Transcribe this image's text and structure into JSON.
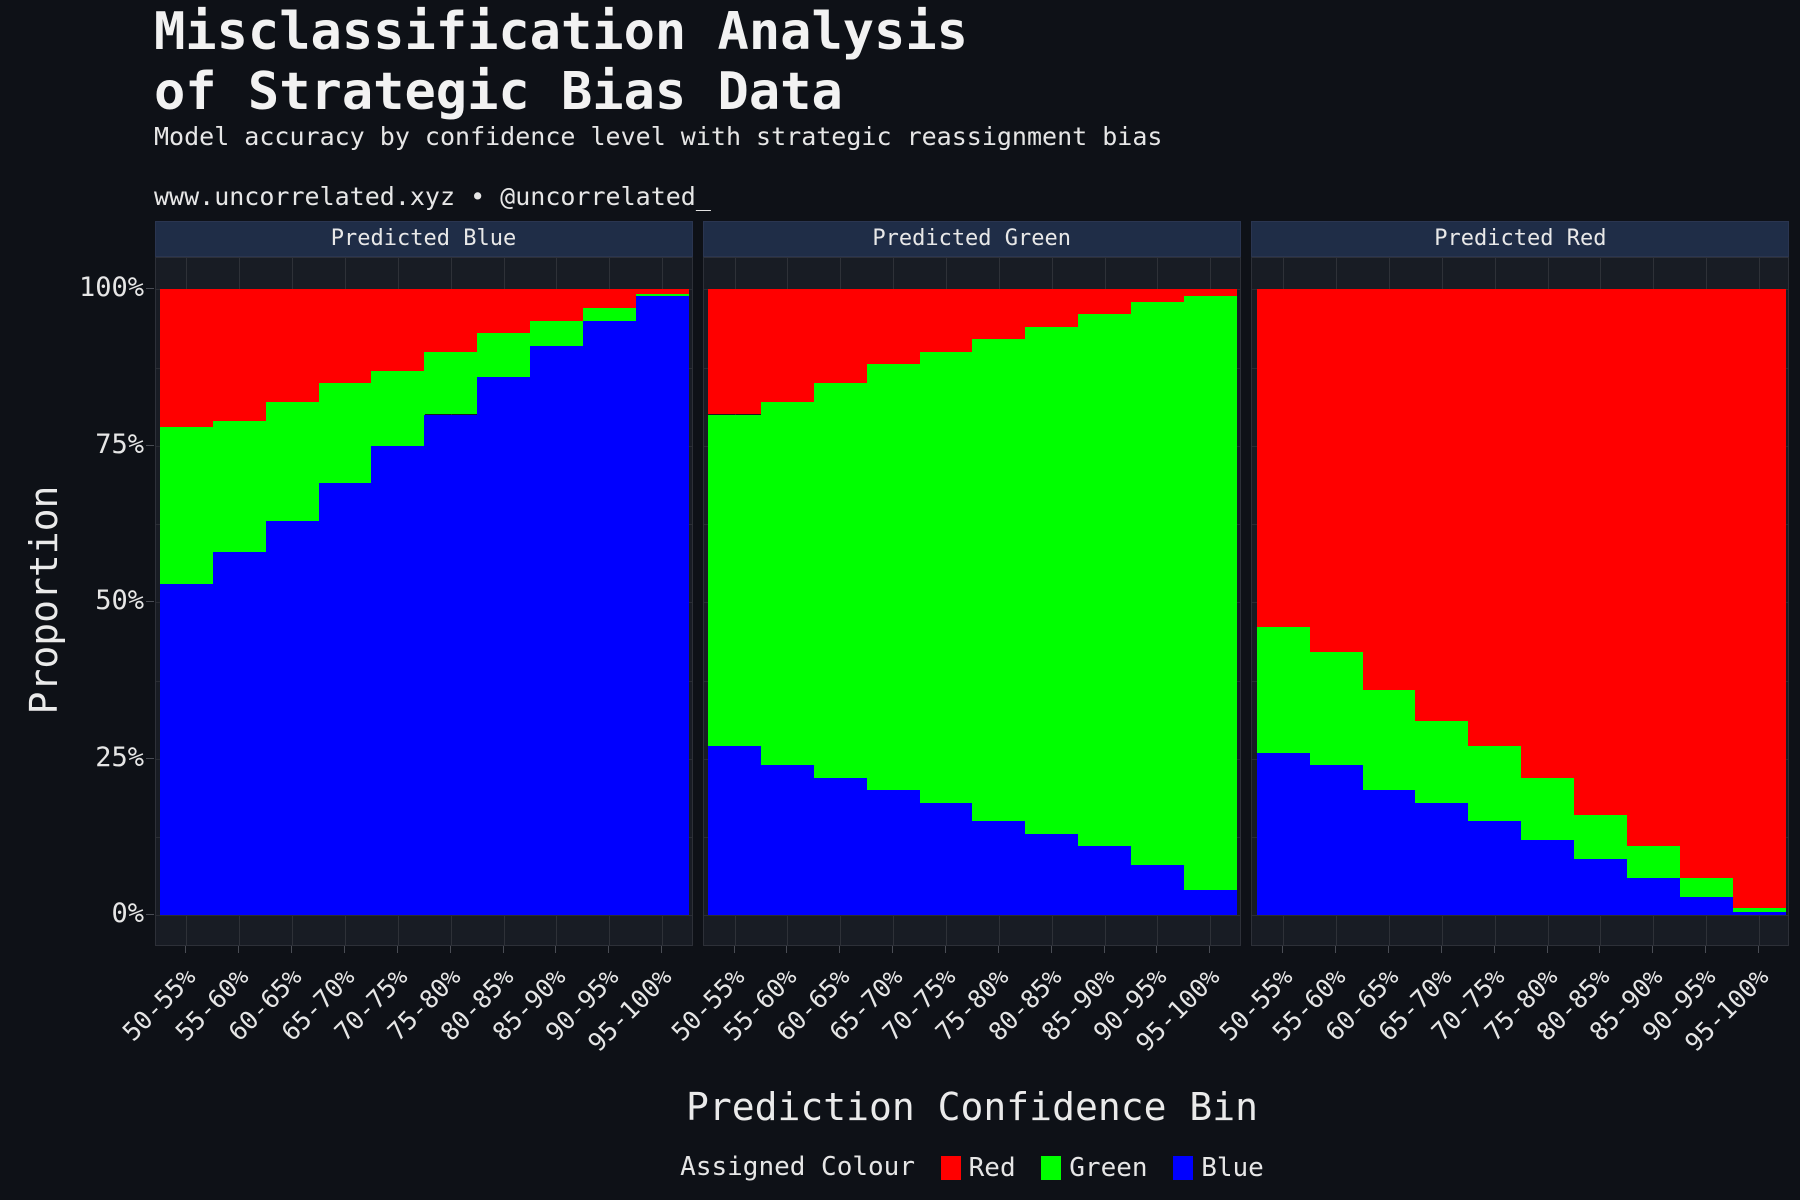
{
  "header": {
    "title_line1": "Misclassification Analysis",
    "title_line2": "of Strategic Bias Data",
    "subtitle": "Model accuracy by confidence level with strategic reassignment bias",
    "caption": "www.uncorrelated.xyz • @uncorrelated_"
  },
  "axes": {
    "ylabel": "Proportion",
    "xlabel": "Prediction Confidence Bin",
    "yticks": [
      "0%",
      "25%",
      "50%",
      "75%",
      "100%"
    ]
  },
  "legend": {
    "title": "Assigned Colour",
    "items": [
      {
        "label": "Red",
        "color": "#ff0000"
      },
      {
        "label": "Green",
        "color": "#00ff00"
      },
      {
        "label": "Blue",
        "color": "#0000ff"
      }
    ]
  },
  "colors": {
    "Red": "#ff0000",
    "Green": "#00ff00",
    "Blue": "#0000ff",
    "background": "#0e1117",
    "strip": "#1f2d47",
    "panel": "#181c24"
  },
  "chart_data": {
    "type": "bar",
    "stacked": true,
    "normalized": true,
    "title": "Misclassification Analysis of Strategic Bias Data",
    "subtitle": "Model accuracy by confidence level with strategic reassignment bias",
    "xlabel": "Prediction Confidence Bin",
    "ylabel": "Proportion",
    "ylim": [
      0,
      1
    ],
    "stack_order_bottom_to_top": [
      "Blue",
      "Green",
      "Red"
    ],
    "categories": [
      "50-55%",
      "55-60%",
      "60-65%",
      "65-70%",
      "70-75%",
      "75-80%",
      "80-85%",
      "85-90%",
      "90-95%",
      "95-100%"
    ],
    "legend_position": "bottom",
    "facets": [
      {
        "name": "Predicted Blue",
        "series": [
          {
            "name": "Blue",
            "values": [
              0.53,
              0.58,
              0.63,
              0.69,
              0.75,
              0.8,
              0.86,
              0.91,
              0.95,
              0.99
            ]
          },
          {
            "name": "Green",
            "values": [
              0.25,
              0.21,
              0.19,
              0.16,
              0.12,
              0.1,
              0.07,
              0.04,
              0.02,
              0.003
            ]
          },
          {
            "name": "Red",
            "values": [
              0.22,
              0.21,
              0.18,
              0.15,
              0.13,
              0.1,
              0.07,
              0.05,
              0.03,
              0.007
            ]
          }
        ]
      },
      {
        "name": "Predicted Green",
        "series": [
          {
            "name": "Blue",
            "values": [
              0.27,
              0.24,
              0.22,
              0.2,
              0.18,
              0.15,
              0.13,
              0.11,
              0.08,
              0.04
            ]
          },
          {
            "name": "Green",
            "values": [
              0.53,
              0.58,
              0.63,
              0.68,
              0.72,
              0.77,
              0.81,
              0.85,
              0.9,
              0.95
            ]
          },
          {
            "name": "Red",
            "values": [
              0.2,
              0.18,
              0.15,
              0.12,
              0.1,
              0.08,
              0.06,
              0.04,
              0.02,
              0.01
            ]
          }
        ]
      },
      {
        "name": "Predicted Red",
        "series": [
          {
            "name": "Blue",
            "values": [
              0.26,
              0.24,
              0.2,
              0.18,
              0.15,
              0.12,
              0.09,
              0.06,
              0.03,
              0.006
            ]
          },
          {
            "name": "Green",
            "values": [
              0.2,
              0.18,
              0.16,
              0.13,
              0.12,
              0.1,
              0.07,
              0.05,
              0.03,
              0.006
            ]
          },
          {
            "name": "Red",
            "values": [
              0.54,
              0.58,
              0.64,
              0.69,
              0.73,
              0.78,
              0.84,
              0.89,
              0.94,
              0.988
            ]
          }
        ]
      }
    ]
  }
}
